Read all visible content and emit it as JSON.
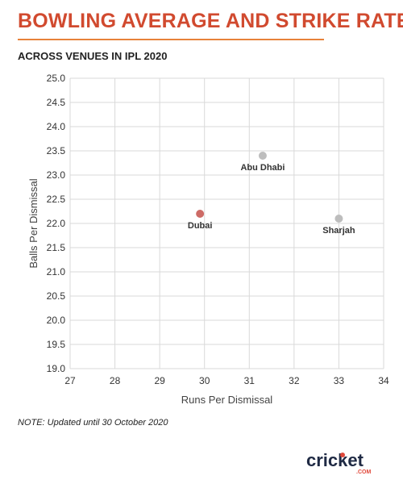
{
  "header": {
    "title": "BOWLING AVERAGE AND STRIKE RATE",
    "subtitle": "ACROSS VENUES IN IPL 2020"
  },
  "note": "NOTE: Updated until 30 October 2020",
  "logo": {
    "text": "cricket",
    "suffix": ".COM"
  },
  "colors": {
    "title": "#d14a2f",
    "rule": "#e7823a",
    "highlight_point": "#cd6b66",
    "point": "#bdbdbd",
    "grid": "#d9d9d9"
  },
  "chart_data": {
    "type": "scatter",
    "xlabel": "Runs Per Dismissal",
    "ylabel": "Balls Per Dismissal",
    "xlim": [
      27,
      34
    ],
    "ylim": [
      19.0,
      25.0
    ],
    "xticks": [
      "27",
      "28",
      "29",
      "30",
      "31",
      "32",
      "33",
      "34"
    ],
    "yticks": [
      "19.0",
      "19.5",
      "20.0",
      "20.5",
      "21.0",
      "21.5",
      "22.0",
      "22.5",
      "23.0",
      "23.5",
      "24.0",
      "24.5",
      "25.0"
    ],
    "grid": true,
    "points": [
      {
        "label": "Dubai",
        "x": 29.9,
        "y": 22.2,
        "highlight": true
      },
      {
        "label": "Abu Dhabi",
        "x": 31.3,
        "y": 23.4,
        "highlight": false
      },
      {
        "label": "Sharjah",
        "x": 33.0,
        "y": 22.1,
        "highlight": false
      }
    ]
  }
}
